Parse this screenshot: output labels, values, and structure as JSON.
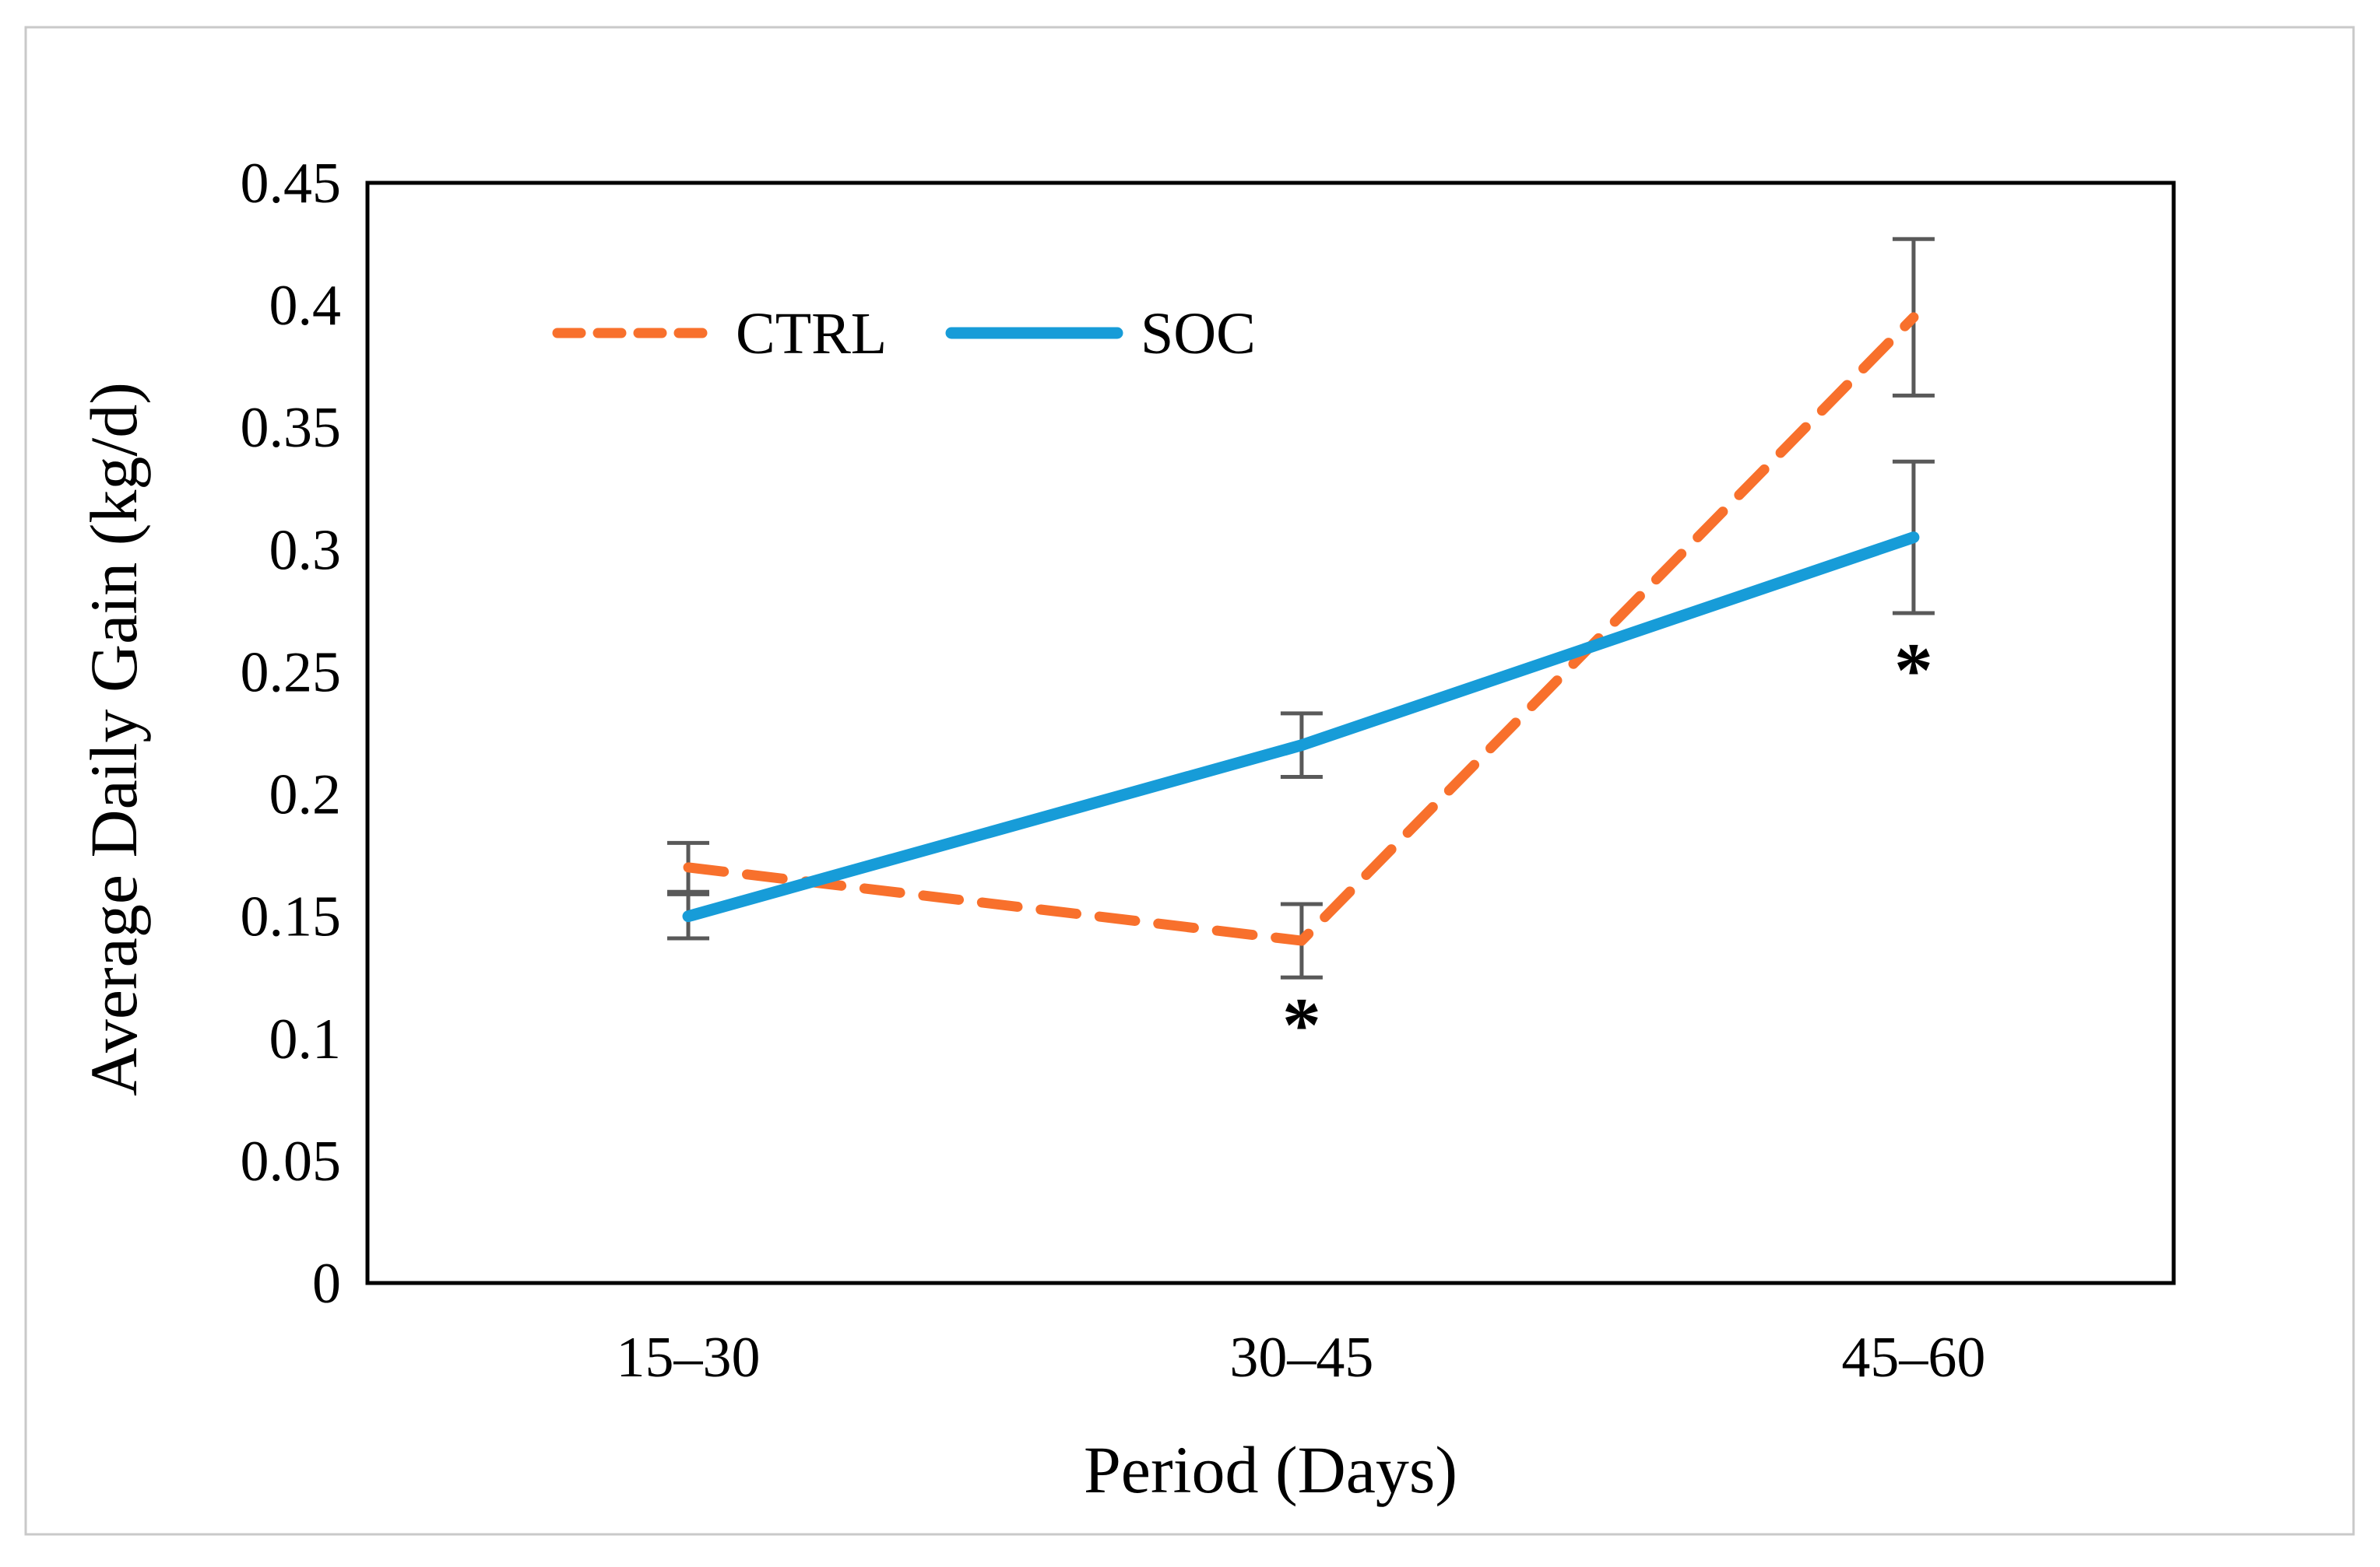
{
  "figure": {
    "background": "#ffffff",
    "frame_border_color": "#c9c9c9",
    "plot_border_color": "#000000"
  },
  "chart_data": {
    "type": "line",
    "title": "",
    "categories": [
      "15–30",
      "30–45",
      "45–60"
    ],
    "series": [
      {
        "name": "CTRL",
        "values": [
          0.17,
          0.14,
          0.395
        ],
        "errors": [
          0.01,
          0.015,
          0.032
        ],
        "color": "#F8702C",
        "style": "dashed"
      },
      {
        "name": "SOC",
        "values": [
          0.15,
          0.22,
          0.305
        ],
        "errors": [
          0.009,
          0.013,
          0.031
        ],
        "color": "#179CD8",
        "style": "solid"
      }
    ],
    "xlabel": "Period (Days)",
    "ylabel": "Average Daily Gain (kg/d)",
    "ylim": [
      0,
      0.45
    ],
    "ytick_step": 0.05,
    "yticks": [
      "0.45",
      "0.4",
      "0.35",
      "0.3",
      "0.25",
      "0.2",
      "0.15",
      "0.1",
      "0.05",
      "0"
    ],
    "grid": false,
    "legend_position": "inside-top-left",
    "error_bar_color": "#595959",
    "annotations": [
      {
        "symbol": "*",
        "series": "CTRL",
        "category_index": 1,
        "y_value": 0.11
      },
      {
        "symbol": "*",
        "series": "SOC",
        "category_index": 2,
        "y_value": 0.255
      }
    ]
  }
}
